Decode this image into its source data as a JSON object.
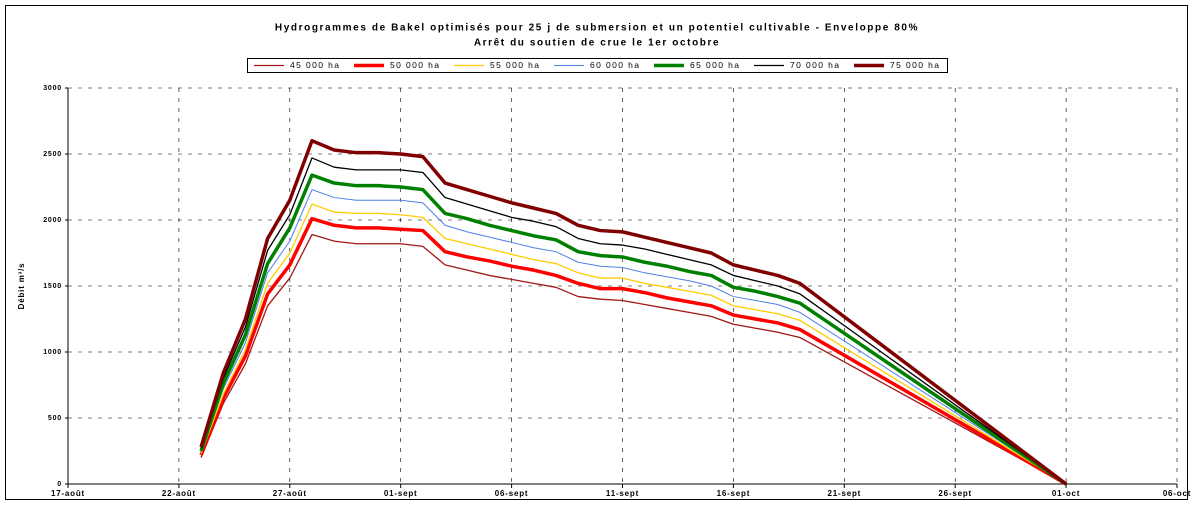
{
  "chart_data": {
    "type": "line",
    "title": "Hydrogrammes de Bakel optimisés pour 25 j de submersion et un potentiel cultivable - Enveloppe 80%",
    "subtitle": "Arrêt du soutien de crue le 1er octobre",
    "y_label": "Débit m³/s",
    "x": [
      6,
      7,
      8,
      9,
      10,
      11,
      12,
      13,
      14,
      15,
      16,
      17,
      18,
      19,
      20,
      21,
      22,
      23,
      24,
      25,
      26,
      27,
      28,
      29,
      30,
      31,
      32,
      33,
      45
    ],
    "series": [
      {
        "name": "45 000 ha",
        "color": "#a01818",
        "width": 1.3,
        "values": [
          200,
          610,
          910,
          1350,
          1560,
          1890,
          1840,
          1820,
          1820,
          1820,
          1800,
          1660,
          1620,
          1580,
          1550,
          1520,
          1490,
          1420,
          1400,
          1390,
          1360,
          1330,
          1300,
          1270,
          1210,
          1180,
          1150,
          1110,
          0
        ]
      },
      {
        "name": "50 000 ha",
        "color": "#ff0000",
        "width": 3.5,
        "values": [
          220,
          650,
          970,
          1440,
          1660,
          2010,
          1960,
          1940,
          1940,
          1930,
          1920,
          1760,
          1720,
          1690,
          1650,
          1620,
          1580,
          1520,
          1480,
          1480,
          1450,
          1410,
          1380,
          1350,
          1280,
          1250,
          1220,
          1170,
          0
        ]
      },
      {
        "name": "55 000 ha",
        "color": "#ffcc00",
        "width": 1.3,
        "values": [
          230,
          680,
          1020,
          1520,
          1750,
          2120,
          2060,
          2050,
          2050,
          2040,
          2020,
          1860,
          1820,
          1780,
          1740,
          1700,
          1670,
          1600,
          1560,
          1560,
          1520,
          1490,
          1460,
          1430,
          1350,
          1320,
          1290,
          1240,
          0
        ]
      },
      {
        "name": "60 000 ha",
        "color": "#4f7fe8",
        "width": 1,
        "values": [
          240,
          720,
          1070,
          1600,
          1840,
          2230,
          2170,
          2150,
          2150,
          2150,
          2130,
          1960,
          1910,
          1870,
          1830,
          1790,
          1760,
          1680,
          1650,
          1640,
          1600,
          1570,
          1540,
          1500,
          1420,
          1390,
          1360,
          1300,
          0
        ]
      },
      {
        "name": "65 000 ha",
        "color": "#008000",
        "width": 3.5,
        "values": [
          250,
          760,
          1130,
          1670,
          1940,
          2340,
          2280,
          2260,
          2260,
          2250,
          2230,
          2050,
          2010,
          1960,
          1920,
          1880,
          1850,
          1760,
          1730,
          1720,
          1680,
          1650,
          1610,
          1580,
          1490,
          1460,
          1420,
          1370,
          0
        ]
      },
      {
        "name": "70 000 ha",
        "color": "#000000",
        "width": 1.3,
        "values": [
          270,
          800,
          1190,
          1770,
          2040,
          2470,
          2400,
          2380,
          2380,
          2380,
          2360,
          2170,
          2120,
          2070,
          2020,
          1990,
          1950,
          1860,
          1820,
          1810,
          1780,
          1740,
          1700,
          1660,
          1580,
          1540,
          1500,
          1440,
          0
        ]
      },
      {
        "name": "75 000 ha",
        "color": "#800000",
        "width": 3.5,
        "values": [
          280,
          840,
          1250,
          1860,
          2150,
          2600,
          2530,
          2510,
          2510,
          2500,
          2480,
          2280,
          2230,
          2180,
          2130,
          2090,
          2050,
          1960,
          1920,
          1910,
          1870,
          1830,
          1790,
          1750,
          1660,
          1620,
          1580,
          1520,
          0
        ]
      }
    ],
    "xlim": [
      0,
      50
    ],
    "xticks": [
      {
        "value": 0,
        "label": "17-août"
      },
      {
        "value": 5,
        "label": "22-août"
      },
      {
        "value": 10,
        "label": "27-août"
      },
      {
        "value": 15,
        "label": "01-sept"
      },
      {
        "value": 20,
        "label": "06-sept"
      },
      {
        "value": 25,
        "label": "11-sept"
      },
      {
        "value": 30,
        "label": "16-sept"
      },
      {
        "value": 35,
        "label": "21-sept"
      },
      {
        "value": 40,
        "label": "26-sept"
      },
      {
        "value": 45,
        "label": "01-oct"
      },
      {
        "value": 50,
        "label": "06-oct"
      }
    ],
    "ylim": [
      0,
      3000
    ],
    "yticks": [
      0,
      500,
      1000,
      1500,
      2000,
      2500,
      3000
    ],
    "grid": true,
    "legend": "top"
  }
}
